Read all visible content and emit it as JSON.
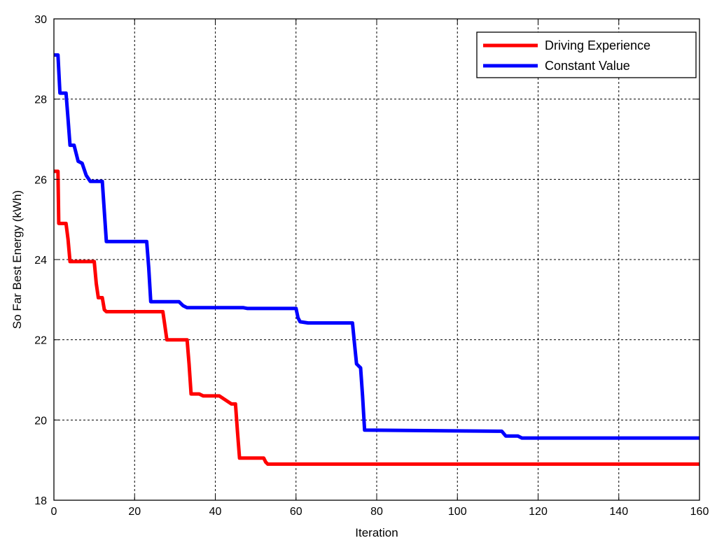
{
  "chart_data": {
    "type": "line",
    "title": "",
    "xlabel": "Iteration",
    "ylabel": "So Far Best Energy (kWh)",
    "xlim": [
      0,
      160
    ],
    "ylim": [
      18,
      30
    ],
    "xticks": [
      "0",
      "20",
      "40",
      "60",
      "80",
      "100",
      "120",
      "140",
      "160"
    ],
    "yticks": [
      "18",
      "20",
      "22",
      "24",
      "26",
      "28",
      "30"
    ],
    "grid": true,
    "legend_position": "top-right",
    "series": [
      {
        "name": "Driving Experience",
        "color": "#ff0000",
        "x": [
          0,
          1,
          1.2,
          2,
          3,
          3.5,
          4,
          10,
          10.5,
          11,
          12,
          12.5,
          13,
          27,
          27.5,
          28,
          33,
          33.5,
          34,
          36,
          37,
          41,
          44,
          45,
          45.5,
          46,
          52,
          52.5,
          53,
          160
        ],
        "y": [
          26.2,
          26.2,
          24.9,
          24.9,
          24.9,
          24.5,
          23.95,
          23.95,
          23.4,
          23.05,
          23.05,
          22.75,
          22.7,
          22.7,
          22.35,
          22.0,
          22.0,
          21.4,
          20.65,
          20.65,
          20.6,
          20.6,
          20.4,
          20.4,
          19.7,
          19.05,
          19.05,
          18.95,
          18.9,
          18.9
        ]
      },
      {
        "name": "Constant Value",
        "color": "#0000ff",
        "x": [
          0,
          1,
          1.5,
          3,
          3.5,
          4,
          5,
          6,
          7,
          8,
          9,
          12,
          12.5,
          13,
          23,
          23.5,
          24,
          31,
          32,
          33,
          47,
          48,
          60,
          60.5,
          61,
          63,
          74,
          74.5,
          75,
          76,
          76.5,
          77,
          110,
          111,
          112,
          115,
          116,
          160
        ],
        "y": [
          29.1,
          29.1,
          28.15,
          28.15,
          27.5,
          26.85,
          26.85,
          26.45,
          26.4,
          26.1,
          25.95,
          25.95,
          25.2,
          24.45,
          24.45,
          23.8,
          22.95,
          22.95,
          22.85,
          22.8,
          22.8,
          22.78,
          22.78,
          22.55,
          22.45,
          22.42,
          22.42,
          21.9,
          21.4,
          21.3,
          20.6,
          19.75,
          19.72,
          19.72,
          19.6,
          19.6,
          19.55,
          19.55
        ]
      }
    ]
  }
}
